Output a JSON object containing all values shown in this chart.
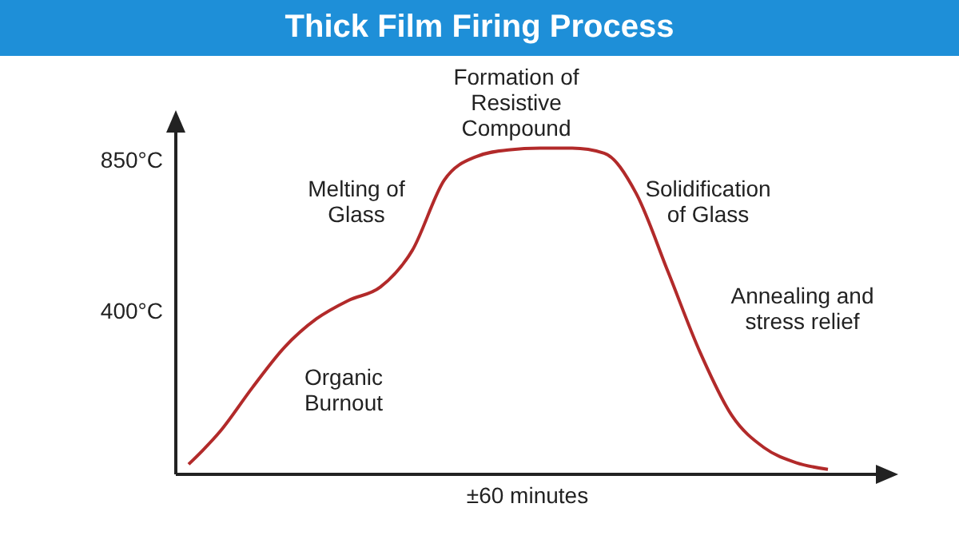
{
  "chart_data": {
    "type": "line",
    "title": "Thick Film Firing Process",
    "xlabel": "±60 minutes",
    "categories": [
      null,
      null,
      null,
      null,
      null,
      null,
      null,
      null,
      null,
      null,
      null,
      null,
      null,
      null,
      null,
      null,
      null,
      null,
      null,
      null,
      null
    ],
    "series": [
      {
        "color": "#b22a2a",
        "values": [
          -60,
          40,
          170,
          290,
          375,
          430,
          470,
          580,
          790,
          860,
          880,
          885,
          885,
          870,
          750,
          515,
          275,
          85,
          -10,
          -55,
          -75
        ]
      }
    ],
    "ylim": [
      -90,
      970
    ],
    "yticks": [
      {
        "value": 400,
        "label": "400°C"
      },
      {
        "value": 850,
        "label": "850°C"
      }
    ],
    "annotations": [
      "Melting of Glass",
      "Formation of Resistive Compound",
      "Solidification of Glass",
      "Organic Burnout",
      "Annealing and stress relief"
    ],
    "grid": false,
    "legend": false,
    "marker": "none",
    "line_style": "solid"
  }
}
